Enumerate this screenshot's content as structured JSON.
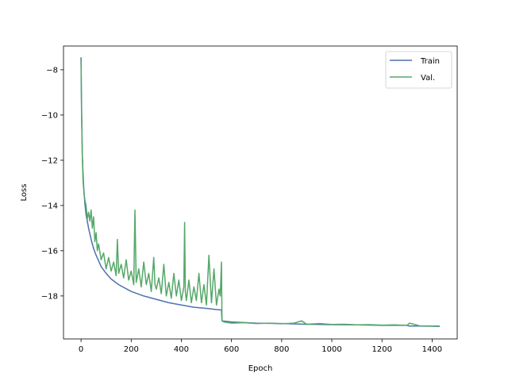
{
  "chart_data": {
    "type": "line",
    "title": "",
    "xlabel": "Epoch",
    "ylabel": "Loss",
    "xlim": [
      -70,
      1500
    ],
    "ylim": [
      -19.9,
      -6.95
    ],
    "xticks": [
      0,
      200,
      400,
      600,
      800,
      1000,
      1200,
      1400
    ],
    "xtick_labels": [
      "0",
      "200",
      "400",
      "600",
      "800",
      "1000",
      "1200",
      "1400"
    ],
    "yticks": [
      -18,
      -16,
      -14,
      -12,
      -10,
      -8
    ],
    "ytick_labels": [
      "−18",
      "−16",
      "−14",
      "−12",
      "−10",
      "−8"
    ],
    "grid": false,
    "legend": {
      "position": "top-right",
      "entries": [
        "Train",
        "Val."
      ]
    },
    "series": [
      {
        "name": "Train",
        "color": "#4c72b0",
        "x": [
          0,
          2,
          5,
          10,
          15,
          20,
          30,
          40,
          50,
          60,
          80,
          100,
          120,
          150,
          200,
          250,
          300,
          350,
          400,
          450,
          500,
          540,
          560,
          562,
          600,
          700,
          800,
          900,
          1000,
          1100,
          1200,
          1300,
          1310,
          1350,
          1400,
          1430
        ],
        "y": [
          -7.45,
          -9.5,
          -11.8,
          -13.1,
          -13.9,
          -14.4,
          -15.0,
          -15.5,
          -15.9,
          -16.2,
          -16.7,
          -17.0,
          -17.25,
          -17.5,
          -17.8,
          -18.0,
          -18.15,
          -18.3,
          -18.4,
          -18.5,
          -18.55,
          -18.6,
          -18.62,
          -19.1,
          -19.15,
          -19.2,
          -19.22,
          -19.25,
          -19.27,
          -19.28,
          -19.3,
          -19.3,
          -19.33,
          -19.33,
          -19.34,
          -19.35
        ]
      },
      {
        "name": "Val.",
        "color": "#55a868",
        "x": [
          0,
          2,
          5,
          8,
          12,
          16,
          20,
          25,
          30,
          35,
          40,
          45,
          50,
          55,
          60,
          65,
          70,
          80,
          90,
          100,
          110,
          120,
          130,
          140,
          145,
          150,
          160,
          170,
          180,
          190,
          200,
          210,
          215,
          220,
          230,
          240,
          250,
          260,
          270,
          280,
          290,
          295,
          300,
          310,
          320,
          330,
          340,
          350,
          360,
          370,
          380,
          390,
          400,
          410,
          413,
          416,
          420,
          430,
          440,
          450,
          460,
          470,
          480,
          490,
          500,
          510,
          520,
          530,
          540,
          550,
          555,
          560,
          562,
          570,
          600,
          650,
          700,
          750,
          800,
          850,
          880,
          900,
          950,
          1000,
          1050,
          1100,
          1150,
          1200,
          1250,
          1300,
          1310,
          1350,
          1400,
          1430
        ],
        "y": [
          -7.6,
          -9.8,
          -11.7,
          -12.9,
          -13.5,
          -13.8,
          -14.0,
          -14.6,
          -14.3,
          -14.7,
          -14.2,
          -15.0,
          -14.5,
          -15.6,
          -15.2,
          -16.0,
          -15.7,
          -16.4,
          -16.1,
          -16.8,
          -16.3,
          -16.9,
          -16.5,
          -17.1,
          -15.5,
          -17.0,
          -16.6,
          -17.2,
          -16.4,
          -17.3,
          -16.9,
          -17.5,
          -14.2,
          -17.4,
          -16.8,
          -17.6,
          -16.5,
          -17.5,
          -17.0,
          -17.8,
          -16.3,
          -17.5,
          -17.7,
          -17.2,
          -17.9,
          -16.6,
          -18.0,
          -17.4,
          -18.1,
          -17.0,
          -18.0,
          -17.3,
          -18.2,
          -17.6,
          -14.75,
          -17.8,
          -18.2,
          -17.3,
          -18.3,
          -17.6,
          -18.2,
          -17.0,
          -18.3,
          -17.5,
          -18.4,
          -16.2,
          -18.3,
          -16.8,
          -18.4,
          -17.7,
          -18.0,
          -16.5,
          -19.1,
          -19.15,
          -19.2,
          -19.18,
          -19.22,
          -19.2,
          -19.23,
          -19.2,
          -19.1,
          -19.25,
          -19.22,
          -19.26,
          -19.25,
          -19.28,
          -19.27,
          -19.29,
          -19.28,
          -19.3,
          -19.2,
          -19.32,
          -19.33,
          -19.33
        ]
      }
    ]
  }
}
